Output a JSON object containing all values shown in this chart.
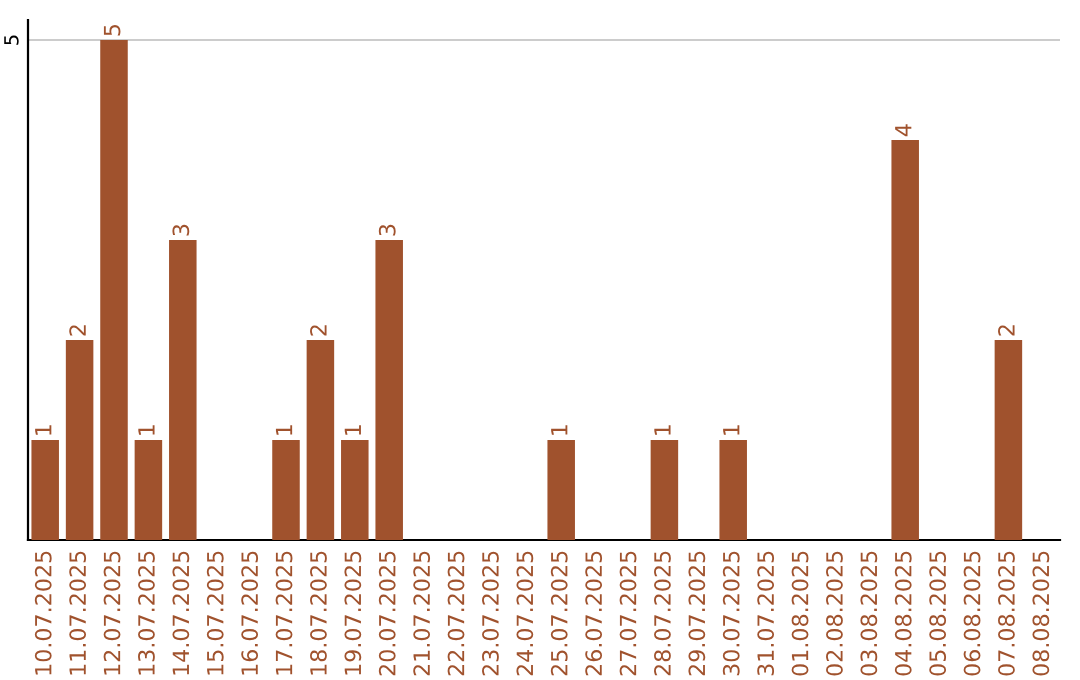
{
  "chart_data": {
    "type": "bar",
    "categories": [
      "10.07.2025",
      "11.07.2025",
      "12.07.2025",
      "13.07.2025",
      "14.07.2025",
      "15.07.2025",
      "16.07.2025",
      "17.07.2025",
      "18.07.2025",
      "19.07.2025",
      "20.07.2025",
      "21.07.2025",
      "22.07.2025",
      "23.07.2025",
      "24.07.2025",
      "25.07.2025",
      "26.07.2025",
      "27.07.2025",
      "28.07.2025",
      "29.07.2025",
      "30.07.2025",
      "31.07.2025",
      "01.08.2025",
      "02.08.2025",
      "03.08.2025",
      "04.08.2025",
      "05.08.2025",
      "06.08.2025",
      "07.08.2025",
      "08.08.2025"
    ],
    "values": [
      1,
      2,
      5,
      1,
      3,
      0,
      0,
      1,
      2,
      1,
      3,
      0,
      0,
      0,
      0,
      1,
      0,
      0,
      1,
      0,
      1,
      0,
      0,
      0,
      0,
      4,
      0,
      0,
      2,
      0
    ],
    "value_labels": [
      "1",
      "2",
      "5",
      "1",
      "3",
      null,
      null,
      "1",
      "2",
      "1",
      "3",
      null,
      null,
      null,
      null,
      "1",
      null,
      null,
      "1",
      null,
      "1",
      null,
      null,
      null,
      null,
      "4",
      null,
      null,
      "2",
      null
    ],
    "color": "#a0522d",
    "ylim": [
      0,
      5.2
    ],
    "yticks": [
      5
    ],
    "grid": "y"
  }
}
